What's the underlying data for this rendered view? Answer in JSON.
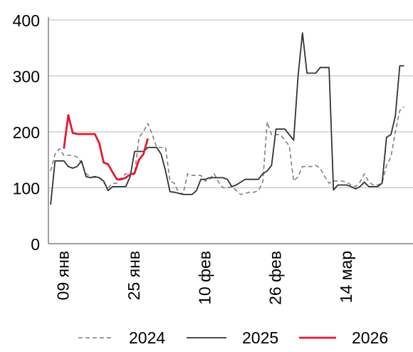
{
  "chart_data": {
    "type": "line",
    "title": "",
    "xlabel": "",
    "ylabel": "",
    "x_start": "09 янв",
    "x_unit": "days",
    "x_ticks": [
      {
        "label": "09 янв",
        "day": 0
      },
      {
        "label": "25 янв",
        "day": 16
      },
      {
        "label": "10 фев",
        "day": 32
      },
      {
        "label": "26 фев",
        "day": 48
      },
      {
        "label": "14 мар",
        "day": 64
      }
    ],
    "y_ticks": [
      0,
      100,
      200,
      300,
      400
    ],
    "ylim": [
      0,
      400
    ],
    "xlim": [
      -3.5,
      79
    ],
    "grid": "horizontal",
    "legend_position": "bottom",
    "series": [
      {
        "name": "2024",
        "color": "#808080",
        "style": "dashed",
        "points": [
          [
            -3,
            130
          ],
          [
            -2,
            160
          ],
          [
            -1,
            170
          ],
          [
            0,
            158
          ],
          [
            2,
            158
          ],
          [
            3,
            155
          ],
          [
            4,
            145
          ],
          [
            5,
            125
          ],
          [
            6,
            120
          ],
          [
            7,
            118
          ],
          [
            8,
            118
          ],
          [
            9,
            110
          ],
          [
            10,
            100
          ],
          [
            11,
            108
          ],
          [
            12,
            108
          ],
          [
            13,
            118
          ],
          [
            14,
            125
          ],
          [
            15,
            124
          ],
          [
            16,
            124
          ],
          [
            17,
            190
          ],
          [
            18,
            200
          ],
          [
            19,
            215
          ],
          [
            20,
            195
          ],
          [
            21,
            172
          ],
          [
            22,
            172
          ],
          [
            23,
            172
          ],
          [
            24,
            112
          ],
          [
            25,
            108
          ],
          [
            26,
            90
          ],
          [
            27,
            90
          ],
          [
            28,
            125
          ],
          [
            29,
            122
          ],
          [
            30,
            122
          ],
          [
            31,
            122
          ],
          [
            32,
            112
          ],
          [
            33,
            115
          ],
          [
            34,
            125
          ],
          [
            35,
            110
          ],
          [
            36,
            100
          ],
          [
            37,
            100
          ],
          [
            38,
            102
          ],
          [
            39,
            95
          ],
          [
            40,
            88
          ],
          [
            41,
            90
          ],
          [
            42,
            92
          ],
          [
            43,
            92
          ],
          [
            44,
            95
          ],
          [
            45,
            110
          ],
          [
            46,
            218
          ],
          [
            47,
            195
          ],
          [
            48,
            195
          ],
          [
            49,
            195
          ],
          [
            50,
            185
          ],
          [
            51,
            175
          ],
          [
            52,
            112
          ],
          [
            53,
            120
          ],
          [
            54,
            138
          ],
          [
            55,
            138
          ],
          [
            56,
            138
          ],
          [
            57,
            140
          ],
          [
            58,
            135
          ],
          [
            59,
            120
          ],
          [
            60,
            108
          ],
          [
            61,
            112
          ],
          [
            62,
            112
          ],
          [
            63,
            112
          ],
          [
            64,
            110
          ],
          [
            65,
            105
          ],
          [
            66,
            102
          ],
          [
            67,
            110
          ],
          [
            68,
            125
          ],
          [
            69,
            110
          ],
          [
            70,
            105
          ],
          [
            71,
            105
          ],
          [
            72,
            108
          ],
          [
            73,
            140
          ],
          [
            74,
            155
          ],
          [
            75,
            200
          ],
          [
            76,
            238
          ],
          [
            77,
            245
          ]
        ]
      },
      {
        "name": "2025",
        "color": "#333333",
        "style": "solid",
        "points": [
          [
            -3,
            70
          ],
          [
            -2,
            148
          ],
          [
            -1,
            148
          ],
          [
            0,
            148
          ],
          [
            1,
            138
          ],
          [
            2,
            135
          ],
          [
            3,
            138
          ],
          [
            4,
            148
          ],
          [
            5,
            120
          ],
          [
            6,
            118
          ],
          [
            7,
            120
          ],
          [
            8,
            118
          ],
          [
            9,
            112
          ],
          [
            10,
            95
          ],
          [
            11,
            102
          ],
          [
            12,
            102
          ],
          [
            13,
            102
          ],
          [
            14,
            102
          ],
          [
            15,
            120
          ],
          [
            16,
            165
          ],
          [
            17,
            165
          ],
          [
            18,
            165
          ],
          [
            19,
            172
          ],
          [
            20,
            172
          ],
          [
            21,
            172
          ],
          [
            22,
            160
          ],
          [
            23,
            130
          ],
          [
            24,
            93
          ],
          [
            25,
            92
          ],
          [
            26,
            90
          ],
          [
            27,
            88
          ],
          [
            28,
            88
          ],
          [
            29,
            88
          ],
          [
            30,
            95
          ],
          [
            31,
            115
          ],
          [
            32,
            115
          ],
          [
            33,
            118
          ],
          [
            34,
            118
          ],
          [
            35,
            118
          ],
          [
            36,
            118
          ],
          [
            37,
            115
          ],
          [
            38,
            102
          ],
          [
            39,
            105
          ],
          [
            40,
            110
          ],
          [
            41,
            115
          ],
          [
            42,
            115
          ],
          [
            43,
            115
          ],
          [
            44,
            115
          ],
          [
            45,
            125
          ],
          [
            46,
            130
          ],
          [
            47,
            140
          ],
          [
            48,
            205
          ],
          [
            49,
            205
          ],
          [
            50,
            205
          ],
          [
            51,
            195
          ],
          [
            52,
            185
          ],
          [
            53,
            300
          ],
          [
            54,
            377
          ],
          [
            55,
            305
          ],
          [
            56,
            305
          ],
          [
            57,
            305
          ],
          [
            58,
            315
          ],
          [
            59,
            315
          ],
          [
            60,
            315
          ],
          [
            61,
            96
          ],
          [
            62,
            105
          ],
          [
            63,
            105
          ],
          [
            64,
            105
          ],
          [
            65,
            102
          ],
          [
            66,
            98
          ],
          [
            67,
            102
          ],
          [
            68,
            110
          ],
          [
            69,
            102
          ],
          [
            70,
            102
          ],
          [
            71,
            102
          ],
          [
            72,
            108
          ],
          [
            73,
            190
          ],
          [
            74,
            195
          ],
          [
            75,
            228
          ],
          [
            76,
            318
          ],
          [
            77,
            318
          ]
        ]
      },
      {
        "name": "2026",
        "color": "#e31837",
        "style": "solid",
        "points": [
          [
            0,
            170
          ],
          [
            1,
            230
          ],
          [
            2,
            198
          ],
          [
            3,
            196
          ],
          [
            4,
            196
          ],
          [
            5,
            196
          ],
          [
            6,
            196
          ],
          [
            7,
            196
          ],
          [
            8,
            180
          ],
          [
            9,
            145
          ],
          [
            10,
            142
          ],
          [
            11,
            128
          ],
          [
            12,
            115
          ],
          [
            13,
            115
          ],
          [
            14,
            118
          ],
          [
            15,
            124
          ],
          [
            16,
            126
          ],
          [
            17,
            150
          ],
          [
            18,
            160
          ],
          [
            19,
            188
          ]
        ]
      }
    ]
  }
}
